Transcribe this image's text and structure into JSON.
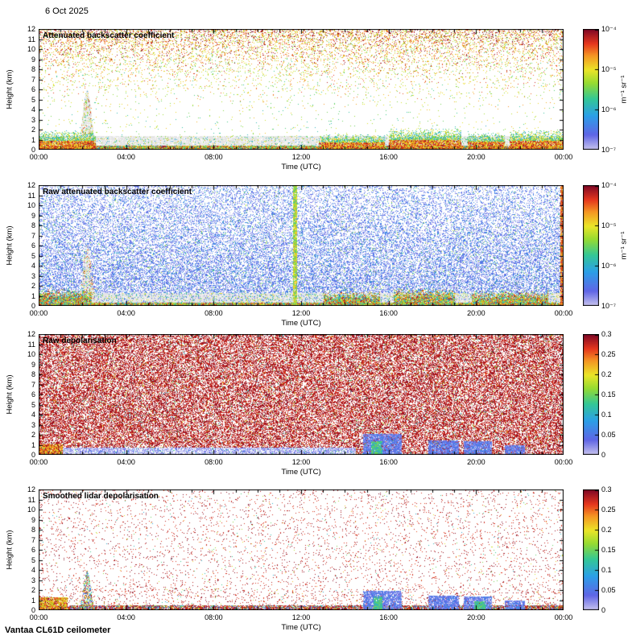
{
  "date_label": "6 Oct 2025",
  "footer": "Vantaa CL61D ceilometer",
  "axes": {
    "x_label": "Time (UTC)",
    "y_label": "Height (km)",
    "x_ticks": [
      "00:00",
      "04:00",
      "08:00",
      "12:00",
      "16:00",
      "20:00",
      "00:00"
    ],
    "y_ticks": [
      "0",
      "1",
      "2",
      "3",
      "4",
      "5",
      "6",
      "7",
      "8",
      "9",
      "10",
      "11",
      "12"
    ]
  },
  "panels": [
    {
      "title": "Attenuated backscatter coefficient",
      "colorbar": {
        "type": "log",
        "ticks": [
          "10⁻⁴",
          "10⁻⁵",
          "10⁻⁶",
          "10⁻⁷"
        ],
        "unit": "m⁻¹ sr⁻¹"
      }
    },
    {
      "title": "Raw attenuated backscatter coefficient",
      "colorbar": {
        "type": "log",
        "ticks": [
          "10⁻⁴",
          "10⁻⁵",
          "10⁻⁶",
          "10⁻⁷"
        ],
        "unit": "m⁻¹ sr⁻¹"
      }
    },
    {
      "title": "Raw depolarisation",
      "colorbar": {
        "type": "linear",
        "ticks": [
          "0.3",
          "0.25",
          "0.2",
          "0.15",
          "0.1",
          "0.05",
          "0"
        ]
      }
    },
    {
      "title": "Smoothed lidar depolarisation",
      "colorbar": {
        "type": "linear",
        "ticks": [
          "0.3",
          "0.25",
          "0.2",
          "0.15",
          "0.1",
          "0.05",
          "0"
        ]
      }
    }
  ],
  "colors": {
    "background": "#ffffff",
    "frame": "#000000",
    "gray_aerosol": "#e5e5e5",
    "colormap_stops": [
      [
        0.0,
        "#c6c2ee"
      ],
      [
        0.12,
        "#6066e6"
      ],
      [
        0.28,
        "#2ca0e8"
      ],
      [
        0.42,
        "#34c896"
      ],
      [
        0.55,
        "#96dc32"
      ],
      [
        0.66,
        "#ebe628"
      ],
      [
        0.78,
        "#f59623"
      ],
      [
        0.88,
        "#e6371e"
      ],
      [
        1.0,
        "#7e0826"
      ]
    ]
  },
  "chart_data": [
    {
      "type": "heatmap",
      "title": "Attenuated backscatter coefficient",
      "xlabel": "Time (UTC)",
      "ylabel": "Height (km)",
      "xlim_hours": [
        0,
        24
      ],
      "ylim_km": [
        0,
        12
      ],
      "x_ticks": [
        "00:00",
        "04:00",
        "08:00",
        "12:00",
        "16:00",
        "20:00",
        "00:00"
      ],
      "colorbar": {
        "scale": "log",
        "min": "1e-7",
        "max": "1e-4",
        "unit": "m⁻¹ sr⁻¹",
        "ticks": [
          "1e-7",
          "1e-6",
          "1e-5",
          "1e-4"
        ]
      },
      "description": "Sparse colored speckle aloft growing denser and warmer-colored toward 12 km; gray aerosol layer below ~1.4 km; bright multicolor cloud/precip returns near the surface.",
      "features": {
        "aerosol_layer_top_km": 1.4,
        "plume": {
          "time_h": 2.2,
          "top_km": 6
        },
        "cloud_segments": [
          [
            0,
            2.6,
            2.0
          ],
          [
            12.8,
            15.8,
            1.6
          ],
          [
            16.0,
            19.3,
            2.2
          ],
          [
            19.6,
            21.3,
            1.8
          ],
          [
            21.5,
            24,
            2.0
          ]
        ]
      }
    },
    {
      "type": "heatmap",
      "title": "Raw attenuated backscatter coefficient",
      "xlabel": "Time (UTC)",
      "ylabel": "Height (km)",
      "xlim_hours": [
        0,
        24
      ],
      "ylim_km": [
        0,
        12
      ],
      "colorbar": {
        "scale": "log",
        "min": "1e-7",
        "max": "1e-4",
        "unit": "m⁻¹ sr⁻¹",
        "ticks": [
          "1e-7",
          "1e-6",
          "1e-5",
          "1e-4"
        ]
      },
      "description": "Dense blue shot-noise speckle at all heights; light-gray aerosol band ~0.35-1.35 km; bright low-level cloud returns; yellow-green vertical streak near 11:42; orange streak at the right edge.",
      "features": {
        "gray_band_km": [
          0.35,
          1.35
        ],
        "vertical_streak_h": 11.7,
        "right_streak_h": 23.82,
        "plume": {
          "time_h": 2.2,
          "top_km": 6
        },
        "cloud_segments": [
          [
            0,
            2.4,
            1.8
          ],
          [
            13.0,
            15.6,
            1.5
          ],
          [
            16.2,
            19.0,
            1.8
          ],
          [
            19.8,
            23.3,
            1.6
          ]
        ]
      }
    },
    {
      "type": "heatmap",
      "title": "Raw depolarisation",
      "xlabel": "Time (UTC)",
      "ylabel": "Height (km)",
      "xlim_hours": [
        0,
        24
      ],
      "ylim_km": [
        0,
        12
      ],
      "colorbar": {
        "scale": "linear",
        "min": 0,
        "max": 0.3,
        "ticks": [
          0,
          0.05,
          0.1,
          0.15,
          0.2,
          0.25,
          0.3
        ]
      },
      "description": "Near-uniform dark-maroon noise (depolarisation ~0.3) everywhere; pale low-depolarisation aerosol band below ~0.8 km from ~01:00-14:30; blue low-depolarisation cloud patches near 15-16:30 and 18-20:30; red/orange band at lower left.",
      "features": {
        "red_band": [
          0,
          1.1,
          1.1
        ],
        "low_depol_band": [
          1.0,
          14.5,
          0.8
        ],
        "blue_patches": [
          [
            14.8,
            16.6,
            2.1
          ],
          [
            17.8,
            19.2,
            1.5
          ],
          [
            19.4,
            20.7,
            1.4
          ],
          [
            21.3,
            22.2,
            1.0
          ]
        ],
        "green_core": [
          15.2,
          15.7,
          1.4
        ]
      }
    },
    {
      "type": "heatmap",
      "title": "Smoothed lidar depolarisation",
      "xlabel": "Time (UTC)",
      "ylabel": "Height (km)",
      "xlim_hours": [
        0,
        24
      ],
      "ylim_km": [
        0,
        12
      ],
      "colorbar": {
        "scale": "linear",
        "min": 0,
        "max": 0.3,
        "ticks": [
          0,
          0.05,
          0.1,
          0.15,
          0.2,
          0.25,
          0.3
        ]
      },
      "description": "Mostly white with sparse maroon speckle; dark mixed band at the surface; multicolor plume near 02:12 up to ~4 km; blue cloud patches near 15-16:30 and 18-20:30 with green cores; orange/red band at lower left.",
      "features": {
        "bottom_band_km": 0.5,
        "red_band": [
          0,
          1.3,
          1.3
        ],
        "plume": {
          "time_h": 2.2,
          "top_km": 4
        },
        "blue_patches": [
          [
            14.8,
            16.6,
            2.0
          ],
          [
            17.8,
            19.2,
            1.5
          ],
          [
            19.4,
            20.7,
            1.4
          ],
          [
            21.3,
            22.2,
            1.0
          ]
        ],
        "green_core": [
          15.3,
          15.7,
          1.4
        ],
        "green_patch": [
          19.9,
          20.4,
          0.9
        ]
      }
    }
  ]
}
